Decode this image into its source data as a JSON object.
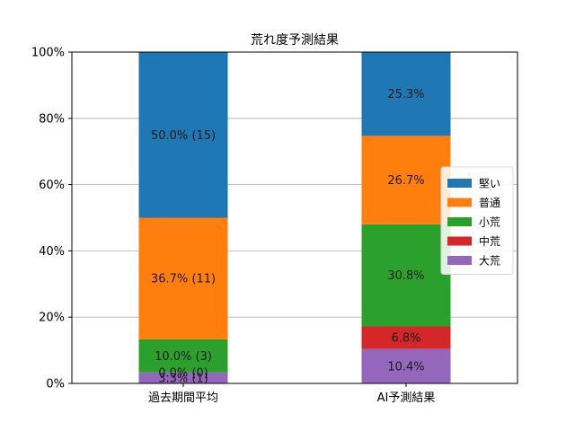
{
  "chart_data": {
    "type": "bar",
    "stacked": true,
    "title": "荒れ度予測結果",
    "xlabel": "",
    "ylabel": "",
    "ylim": [
      0,
      100
    ],
    "yticks": [
      "0%",
      "20%",
      "40%",
      "60%",
      "80%",
      "100%"
    ],
    "grid": "horizontal",
    "legend_position": "right",
    "categories": [
      "過去期間平均",
      "AI予測結果"
    ],
    "series": [
      {
        "name": "大荒",
        "color": "#9467bd",
        "values": [
          3.3,
          10.4
        ],
        "labels": [
          "3.3% (1)",
          "10.4%"
        ]
      },
      {
        "name": "中荒",
        "color": "#d62728",
        "values": [
          0.0,
          6.8
        ],
        "labels": [
          "0.0% (0)",
          "6.8%"
        ]
      },
      {
        "name": "小荒",
        "color": "#2ca02c",
        "values": [
          10.0,
          30.8
        ],
        "labels": [
          "10.0% (3)",
          "30.8%"
        ]
      },
      {
        "name": "普通",
        "color": "#ff7f0e",
        "values": [
          36.7,
          26.7
        ],
        "labels": [
          "36.7% (11)",
          "26.7%"
        ]
      },
      {
        "name": "堅い",
        "color": "#1f77b4",
        "values": [
          50.0,
          25.3
        ],
        "labels": [
          "50.0% (15)",
          "25.3%"
        ]
      }
    ],
    "legend_order": [
      "堅い",
      "普通",
      "小荒",
      "中荒",
      "大荒"
    ]
  }
}
